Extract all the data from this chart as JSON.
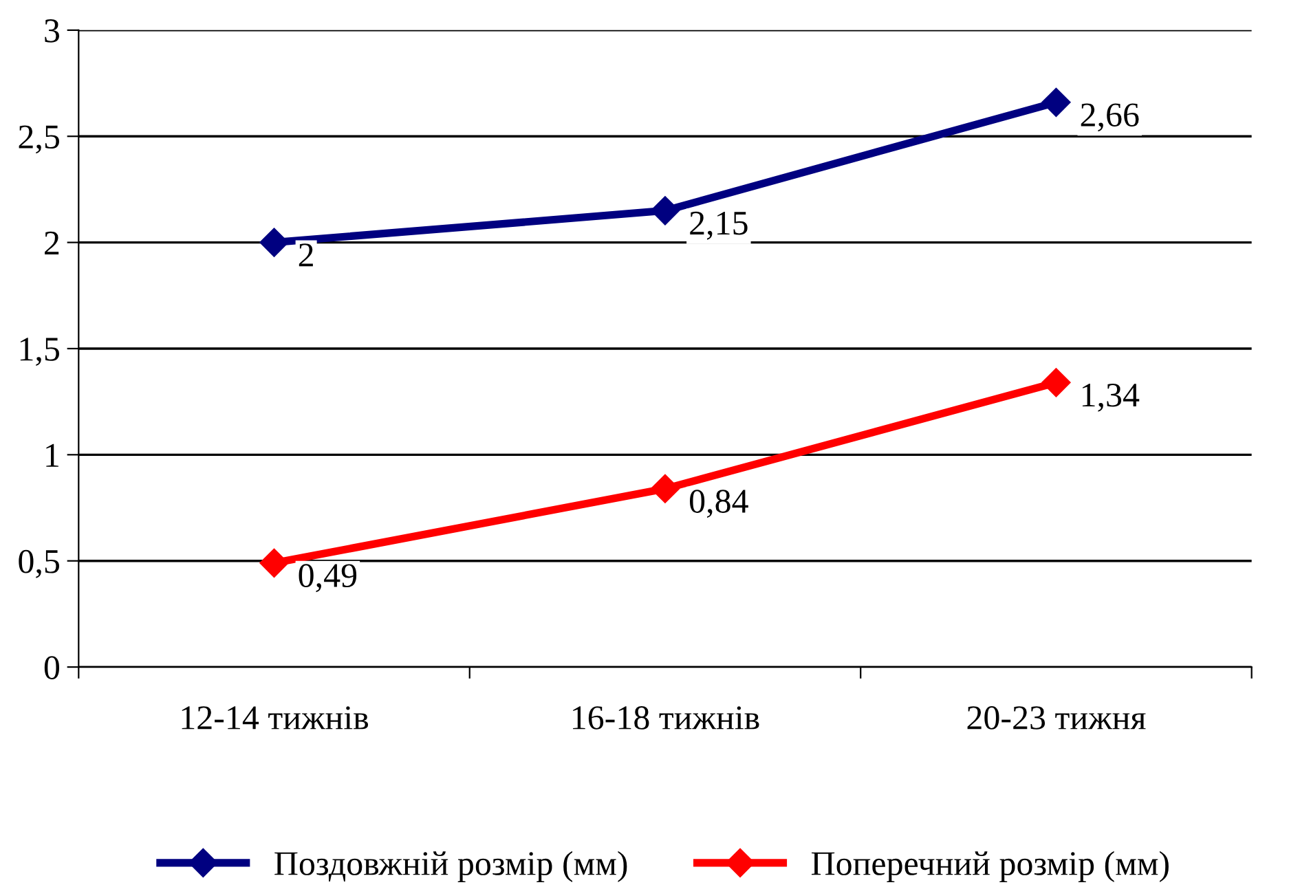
{
  "chart_data": {
    "type": "line",
    "categories": [
      "12-14 тижнів",
      "16-18 тижнів",
      "20-23 тижня"
    ],
    "series": [
      {
        "name": "Поздовжній розмір (мм)",
        "color": "#000080",
        "values": [
          2,
          2.15,
          2.66
        ],
        "value_labels": [
          "2",
          "2,15",
          "2,66"
        ]
      },
      {
        "name": "Поперечний розмір (мм)",
        "color": "#ff0000",
        "values": [
          0.49,
          0.84,
          1.34
        ],
        "value_labels": [
          "0,49",
          "0,84",
          "1,34"
        ]
      }
    ],
    "ylim": [
      0,
      3
    ],
    "yticks": [
      0,
      {
        "value": 0.5,
        "label": "0,5"
      },
      1,
      {
        "value": 1.5,
        "label": "1,5"
      },
      2,
      {
        "value": 2.5,
        "label": "2,5"
      },
      3
    ],
    "grid": "y",
    "legend": "bottom",
    "marker": "diamond",
    "line_style": "solid"
  }
}
